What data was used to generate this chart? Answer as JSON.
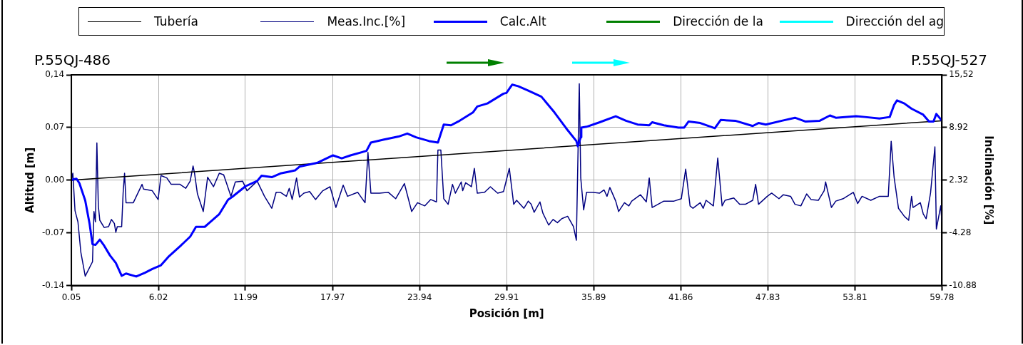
{
  "chart_data": {
    "type": "line",
    "xlabel": "Posición [m]",
    "ylabel": "Altitud [m]",
    "y2label": "Inclinación [%]",
    "annotations": [
      "P.55QJ-486",
      "P.55QJ-527",
      "Dirección de la",
      "Dirección del ag"
    ],
    "legend": "top",
    "grid": true,
    "marker": "none",
    "line_style": "solid",
    "xlim": [
      0.05,
      59.78
    ],
    "xticks": [
      0.05,
      6.02,
      11.99,
      17.97,
      23.94,
      29.91,
      35.89,
      41.86,
      47.83,
      53.81,
      59.78
    ],
    "ylim": [
      -0.14,
      0.14
    ],
    "yticks": [
      -0.14,
      -0.07,
      {
        "value": 0,
        "label": "0.00"
      },
      0.07,
      {
        "value": 0.14,
        "label": "0,14"
      }
    ],
    "y2lim": [
      -10.88,
      15.52
    ],
    "y2ticks": [
      -10.88,
      -4.28,
      2.32,
      8.92,
      {
        "value": 15.52,
        "label": "15,52"
      }
    ],
    "series": [
      {
        "name": "Tubería",
        "color": "#000000",
        "x": [
          0.05,
          59.78
        ],
        "values": [
          0.0,
          0.079
        ]
      },
      {
        "name": "Meas.Inc.[%]",
        "color": "#000080",
        "axis": "y2",
        "x": [
          0.05,
          0.15,
          0.3,
          0.5,
          0.7,
          1.0,
          1.5,
          1.6,
          1.7,
          1.8,
          1.9,
          2.0,
          2.3,
          2.6,
          2.8,
          3.0,
          3.1,
          3.2,
          3.5,
          3.6,
          3.7,
          3.8,
          4.3,
          4.9,
          5.0,
          5.6,
          6.0,
          6.2,
          6.6,
          6.9,
          7.5,
          7.9,
          8.2,
          8.4,
          8.5,
          8.7,
          9.1,
          9.4,
          9.8,
          10.2,
          10.5,
          11.0,
          11.3,
          11.8,
          12.1,
          12.8,
          13.3,
          13.8,
          14.1,
          14.4,
          14.8,
          15.0,
          15.2,
          15.5,
          15.7,
          16.0,
          16.4,
          16.8,
          17.3,
          17.8,
          18.2,
          18.7,
          19.0,
          19.7,
          20.2,
          20.4,
          20.6,
          21.2,
          21.8,
          22.3,
          22.9,
          23.4,
          23.8,
          24.3,
          24.7,
          25.1,
          25.2,
          25.4,
          25.6,
          25.9,
          26.2,
          26.4,
          26.8,
          26.9,
          27.1,
          27.5,
          27.7,
          27.9,
          28.4,
          28.8,
          29.3,
          29.7,
          30.1,
          30.4,
          30.6,
          31.1,
          31.4,
          31.6,
          31.8,
          32.2,
          32.4,
          32.8,
          33.1,
          33.4,
          33.7,
          34.1,
          34.5,
          34.7,
          34.9,
          35.0,
          35.2,
          35.4,
          35.8,
          36.3,
          36.6,
          36.8,
          37.0,
          37.4,
          37.6,
          38.0,
          38.3,
          38.5,
          39.1,
          39.5,
          39.7,
          39.9,
          40.7,
          41.4,
          41.9,
          42.2,
          42.5,
          42.7,
          43.2,
          43.4,
          43.6,
          44.1,
          44.4,
          44.7,
          44.9,
          45.5,
          45.9,
          46.3,
          46.8,
          47.0,
          47.2,
          47.8,
          48.1,
          48.6,
          48.9,
          49.4,
          49.7,
          50.1,
          50.5,
          50.8,
          51.3,
          51.7,
          51.8,
          52.2,
          52.5,
          53.0,
          53.7,
          54.0,
          54.3,
          54.9,
          55.5,
          56.1,
          56.3,
          56.5,
          56.8,
          57.2,
          57.5,
          57.7,
          57.8,
          58.3,
          58.5,
          58.7,
          59.0,
          59.3,
          59.4,
          59.7,
          59.78
        ],
        "values": [
          2.3,
          3.2,
          -1.5,
          -2.9,
          -6.7,
          -9.7,
          -7.9,
          -1.6,
          -2.9,
          7.0,
          -0.9,
          -2.7,
          -3.6,
          -3.5,
          -2.6,
          -3.1,
          -4.2,
          -3.5,
          -3.5,
          0.7,
          3.2,
          -0.5,
          -0.5,
          1.8,
          1.2,
          1.0,
          -0.1,
          2.9,
          2.6,
          1.8,
          1.8,
          1.3,
          2.2,
          4.1,
          3.2,
          0.6,
          -1.6,
          2.7,
          1.5,
          3.2,
          3.0,
          0.3,
          2.1,
          2.2,
          1.0,
          2.2,
          0.3,
          -1.2,
          0.8,
          0.8,
          0.3,
          1.3,
          -0.1,
          2.6,
          0.2,
          0.7,
          0.9,
          -0.1,
          1.0,
          1.5,
          -1.1,
          1.7,
          0.3,
          0.8,
          -0.5,
          5.8,
          0.7,
          0.7,
          0.8,
          0.0,
          1.9,
          -1.6,
          -0.5,
          -0.9,
          -0.1,
          -0.4,
          6.1,
          6.1,
          0.0,
          -0.7,
          1.8,
          0.7,
          2.1,
          1.0,
          2.0,
          1.5,
          3.8,
          0.7,
          0.8,
          1.5,
          0.7,
          0.9,
          3.8,
          -0.7,
          -0.2,
          -1.2,
          -0.3,
          -0.7,
          -1.7,
          -0.4,
          -1.8,
          -3.3,
          -2.6,
          -3.0,
          -2.5,
          -2.2,
          -3.5,
          -5.2,
          14.4,
          2.6,
          -1.4,
          0.8,
          0.8,
          0.7,
          1.1,
          0.3,
          1.4,
          -0.3,
          -1.6,
          -0.5,
          -0.9,
          -0.3,
          0.5,
          -0.4,
          2.6,
          -1.1,
          -0.3,
          -0.3,
          0.0,
          3.7,
          -0.9,
          -1.2,
          -0.5,
          -1.2,
          -0.2,
          -0.9,
          5.1,
          -0.9,
          -0.2,
          0.1,
          -0.7,
          -0.7,
          -0.2,
          1.8,
          -0.7,
          0.3,
          0.7,
          0.0,
          0.5,
          0.3,
          -0.7,
          -0.9,
          0.6,
          -0.1,
          -0.2,
          1.0,
          2.1,
          -1.1,
          -0.3,
          0.0,
          0.8,
          -0.6,
          0.3,
          -0.2,
          0.3,
          0.3,
          7.2,
          2.7,
          -1.2,
          -2.2,
          -2.7,
          0.3,
          -1.1,
          -0.5,
          -1.9,
          -2.5,
          0.7,
          6.5,
          -3.8,
          -0.9,
          -2.9
        ]
      },
      {
        "name": "Calc.Alt",
        "color": "#0000ff",
        "x": [
          0.05,
          0.15,
          0.4,
          0.6,
          1.0,
          1.3,
          1.5,
          1.7,
          2.0,
          2.3,
          2.7,
          3.1,
          3.5,
          3.8,
          4.5,
          5.1,
          5.6,
          6.2,
          6.7,
          7.5,
          8.2,
          8.6,
          9.2,
          9.5,
          10.2,
          10.8,
          11.1,
          12.0,
          12.8,
          13.1,
          13.8,
          14.4,
          14.9,
          15.4,
          15.7,
          16.9,
          18.0,
          18.6,
          19.2,
          20.3,
          20.6,
          21.5,
          22.5,
          23.1,
          23.7,
          24.6,
          25.2,
          25.6,
          26.1,
          26.6,
          27.6,
          27.9,
          28.6,
          29.7,
          29.9,
          30.3,
          30.7,
          31.4,
          32.3,
          33.2,
          34.0,
          34.7,
          34.8,
          35.0,
          35.04,
          35.4,
          36.3,
          37.4,
          38.1,
          38.9,
          39.7,
          39.9,
          40.7,
          41.7,
          42.1,
          42.4,
          43.2,
          44.2,
          44.6,
          45.6,
          46.8,
          47.2,
          47.7,
          48.8,
          49.7,
          50.4,
          51.4,
          52.1,
          52.5,
          53.9,
          54.5,
          55.5,
          56.2,
          56.5,
          56.7,
          57.2,
          57.7,
          58.5,
          58.9,
          59.2,
          59.4,
          59.78
        ],
        "values": [
          0.0,
          0.001,
          0.002,
          -0.004,
          -0.027,
          -0.058,
          -0.085,
          -0.086,
          -0.079,
          -0.087,
          -0.1,
          -0.11,
          -0.127,
          -0.124,
          -0.128,
          -0.123,
          -0.118,
          -0.113,
          -0.102,
          -0.088,
          -0.075,
          -0.062,
          -0.062,
          -0.057,
          -0.045,
          -0.026,
          -0.022,
          -0.008,
          -0.001,
          0.006,
          0.004,
          0.009,
          0.011,
          0.013,
          0.018,
          0.023,
          0.033,
          0.029,
          0.033,
          0.039,
          0.05,
          0.054,
          0.058,
          0.062,
          0.057,
          0.052,
          0.05,
          0.074,
          0.073,
          0.078,
          0.09,
          0.098,
          0.102,
          0.115,
          0.116,
          0.127,
          0.125,
          0.119,
          0.111,
          0.09,
          0.069,
          0.052,
          0.045,
          0.057,
          0.07,
          0.071,
          0.077,
          0.085,
          0.079,
          0.074,
          0.073,
          0.077,
          0.073,
          0.07,
          0.07,
          0.078,
          0.076,
          0.069,
          0.08,
          0.079,
          0.072,
          0.076,
          0.074,
          0.079,
          0.083,
          0.078,
          0.079,
          0.086,
          0.083,
          0.085,
          0.084,
          0.082,
          0.084,
          0.1,
          0.106,
          0.102,
          0.095,
          0.087,
          0.078,
          0.078,
          0.088,
          0.079
        ]
      }
    ]
  }
}
